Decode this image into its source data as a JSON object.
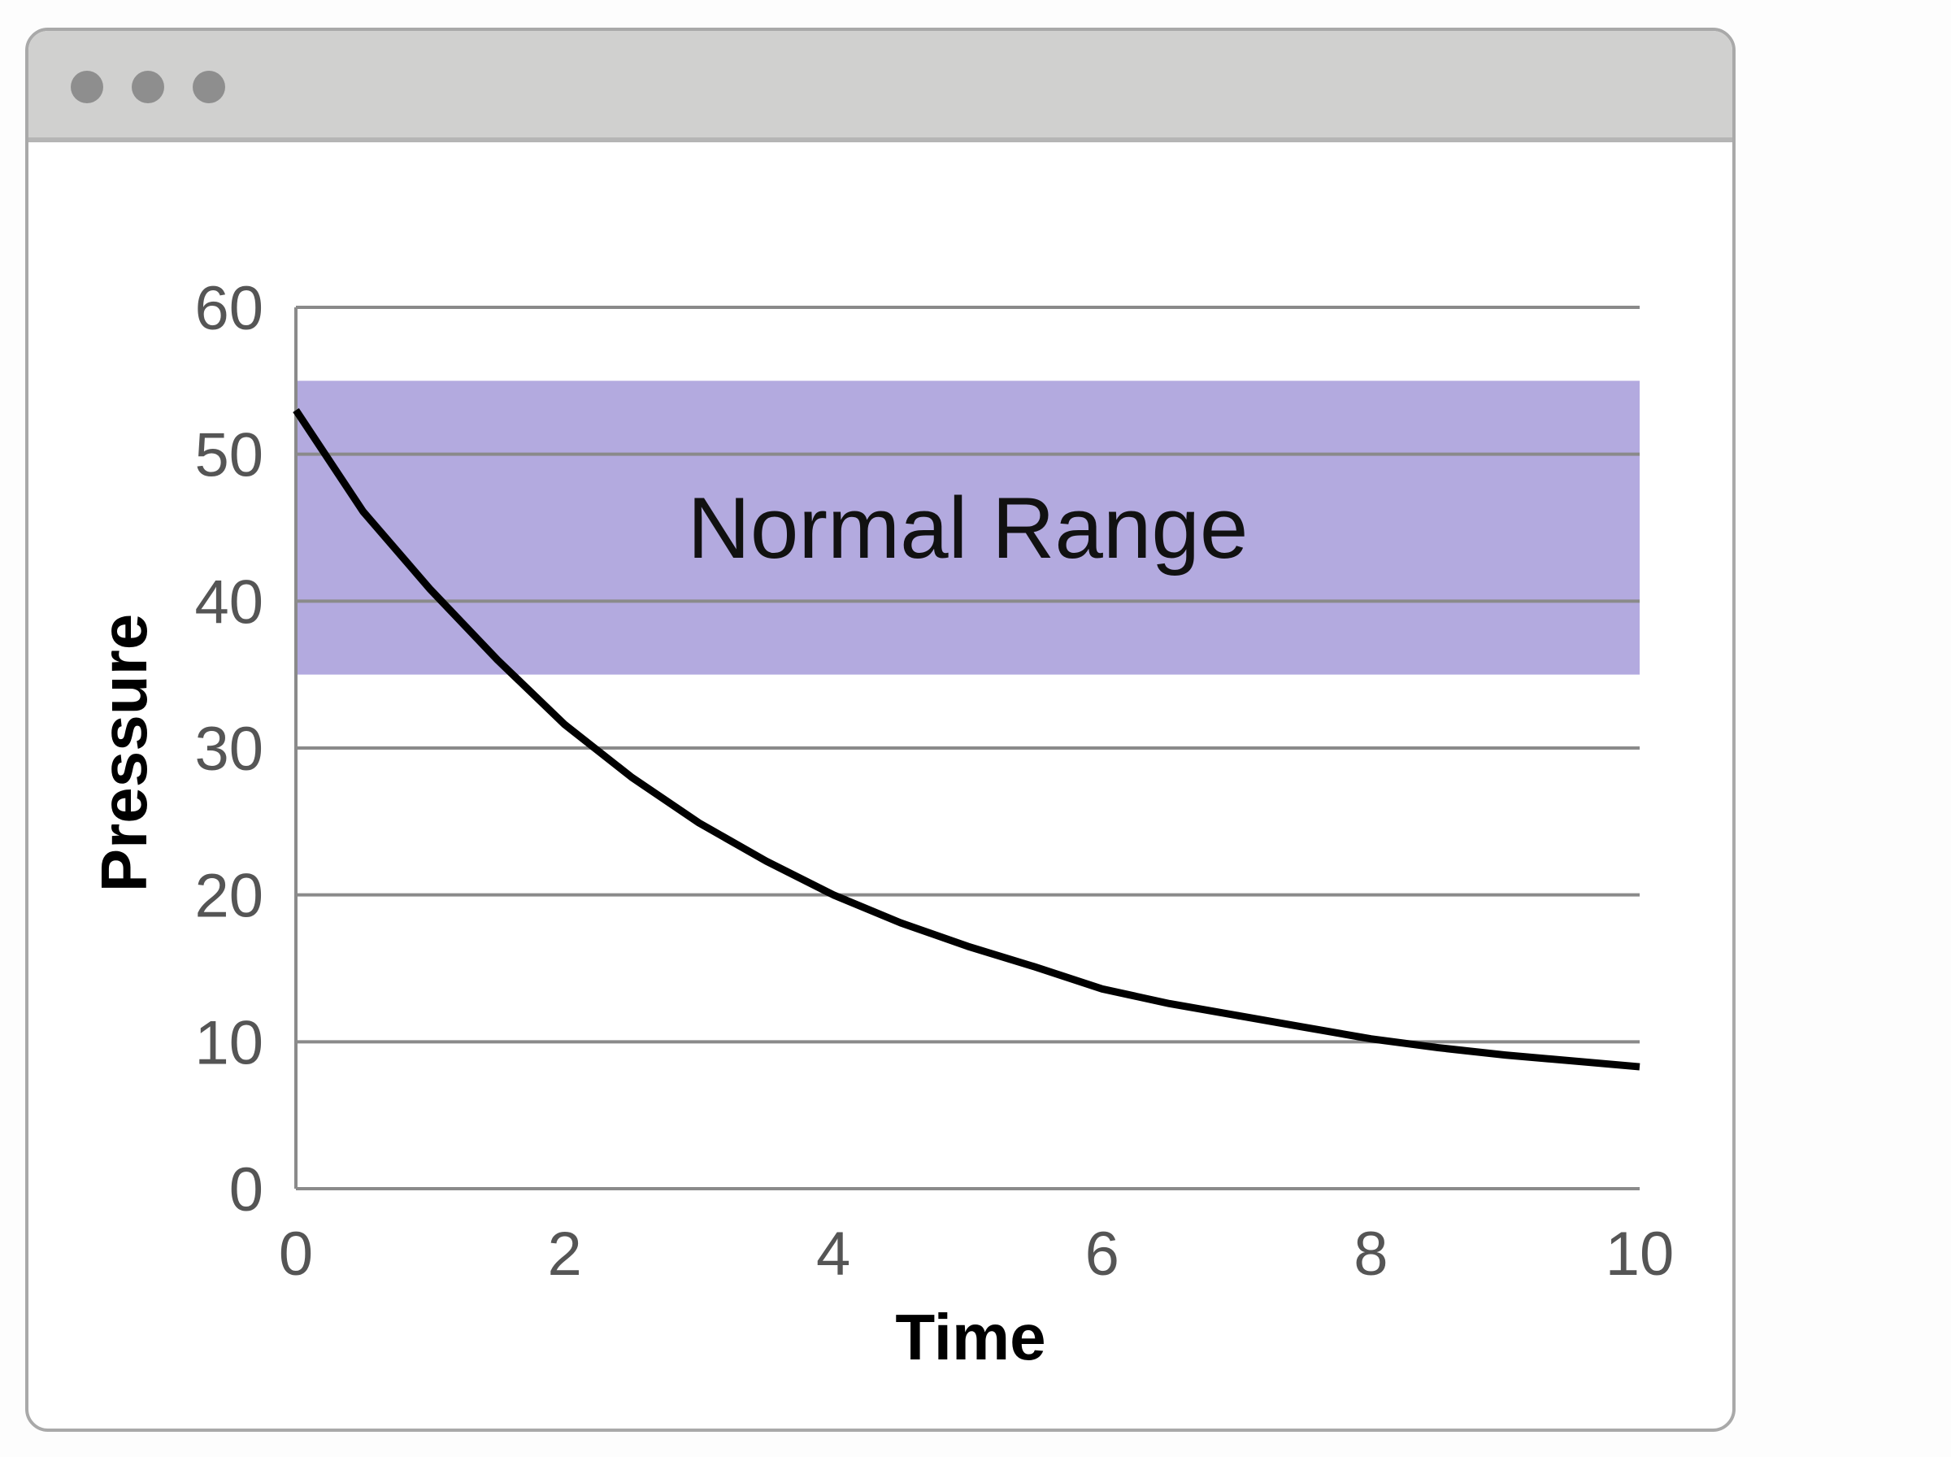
{
  "window": {
    "controls": [
      "dot",
      "dot",
      "dot"
    ]
  },
  "chart_data": {
    "type": "line",
    "title": "",
    "xlabel": "Time",
    "ylabel": "Pressure",
    "xlim": [
      0,
      10
    ],
    "ylim": [
      0,
      60
    ],
    "xticks": [
      "0",
      "2",
      "4",
      "6",
      "8",
      "10"
    ],
    "yticks": [
      "0",
      "10",
      "20",
      "30",
      "40",
      "50",
      "60"
    ],
    "grid": "horizontal",
    "band": {
      "label": "Normal Range",
      "from": 35,
      "to": 55,
      "color": "#b3aadf"
    },
    "series": [
      {
        "color": "#000000",
        "x": [
          0,
          0.5,
          1,
          1.5,
          2,
          2.5,
          3,
          3.5,
          4,
          4.5,
          5,
          5.5,
          6,
          6.5,
          7,
          7.5,
          8,
          8.5,
          9,
          9.5,
          10
        ],
        "y": [
          53,
          46.1,
          40.8,
          36.0,
          31.6,
          28.0,
          24.9,
          22.3,
          20.0,
          18.1,
          16.5,
          15.1,
          13.6,
          12.6,
          11.8,
          11.0,
          10.2,
          9.6,
          9.1,
          8.7,
          8.3
        ]
      }
    ]
  }
}
